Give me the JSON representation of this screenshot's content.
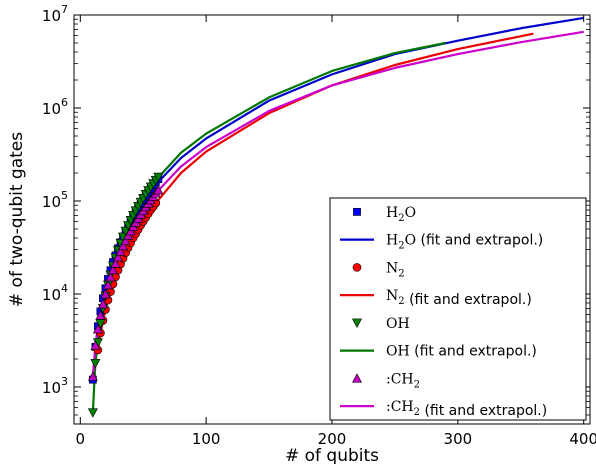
{
  "chart_data": {
    "type": "line",
    "xlabel": "# of qubits",
    "ylabel": "# of two-qubit gates",
    "xlim": [
      -5,
      405
    ],
    "ylim": [
      400,
      10000000
    ],
    "yscale": "log",
    "grid": false,
    "legend_position": "lower-right",
    "x_ticks": [
      0,
      100,
      200,
      300,
      400
    ],
    "y_ticks": [
      {
        "value": 1000,
        "base": "10",
        "exp": "3"
      },
      {
        "value": 10000,
        "base": "10",
        "exp": "4"
      },
      {
        "value": 100000,
        "base": "10",
        "exp": "5"
      },
      {
        "value": 1000000,
        "base": "10",
        "exp": "6"
      },
      {
        "value": 10000000,
        "base": "10",
        "exp": "7"
      }
    ],
    "series": [
      {
        "name": "H2O",
        "name_display": {
          "pre": "H",
          "sub": "2",
          "post": "O",
          "suffix": ""
        },
        "kind": "markers",
        "marker": "square",
        "color": "#0000ff",
        "x": [
          10,
          12,
          14,
          16,
          18,
          20,
          22,
          24,
          26,
          28,
          30,
          32,
          34,
          36,
          38,
          40,
          42,
          44,
          46,
          48,
          50,
          52,
          54,
          56,
          58,
          60,
          62
        ],
        "y": [
          1200,
          2700,
          4500,
          6500,
          9000,
          11500,
          14500,
          18000,
          22000,
          26000,
          31000,
          36000,
          41500,
          47500,
          54000,
          61000,
          68500,
          76500,
          85000,
          94000,
          103500,
          113500,
          124000,
          135000,
          147000,
          159000,
          172000
        ]
      },
      {
        "name": "H2O (fit and extrapol.)",
        "name_display": {
          "pre": "H",
          "sub": "2",
          "post": "O",
          "suffix": " (fit and extrapol.)"
        },
        "kind": "line",
        "color": "#0000cc",
        "x": [
          10,
          12,
          14,
          16,
          20,
          25,
          30,
          40,
          50,
          60,
          80,
          100,
          150,
          200,
          250,
          300,
          350,
          400
        ],
        "y": [
          1200,
          2700,
          4500,
          6500,
          11500,
          20000,
          31000,
          61000,
          100000,
          150000,
          290000,
          470000,
          1200000,
          2300000,
          3800000,
          5300000,
          7200000,
          9300000
        ]
      },
      {
        "name": "N2",
        "name_display": {
          "pre": "N",
          "sub": "2",
          "post": "",
          "suffix": ""
        },
        "kind": "markers",
        "marker": "circle",
        "color": "#ff0000",
        "x": [
          14,
          16,
          18,
          20,
          22,
          24,
          26,
          28,
          30,
          32,
          34,
          36,
          38,
          40,
          42,
          44,
          46,
          48,
          50,
          52,
          54,
          56,
          58,
          60
        ],
        "y": [
          2500,
          3800,
          5200,
          6800,
          8600,
          10600,
          12800,
          15300,
          18000,
          21000,
          24200,
          27700,
          31500,
          35500,
          40000,
          44500,
          49500,
          55000,
          60500,
          66500,
          73000,
          80000,
          87000,
          95000
        ]
      },
      {
        "name": "N2 (fit and extrapol.)",
        "name_display": {
          "pre": "N",
          "sub": "2",
          "post": "",
          "suffix": " (fit and extrapol.)"
        },
        "kind": "line",
        "color": "#ee0000",
        "x": [
          14,
          16,
          20,
          25,
          30,
          40,
          50,
          60,
          80,
          100,
          150,
          200,
          250,
          300,
          360
        ],
        "y": [
          2500,
          3800,
          6800,
          11800,
          18000,
          35500,
          60500,
          95000,
          200000,
          340000,
          880000,
          1750000,
          2900000,
          4300000,
          6300000
        ]
      },
      {
        "name": "OH",
        "name_display": {
          "pre": "OH",
          "sub": "",
          "post": "",
          "suffix": ""
        },
        "kind": "markers",
        "marker": "triangle-down",
        "color": "#008000",
        "x": [
          10,
          12,
          14,
          16,
          18,
          20,
          22,
          24,
          26,
          28,
          30,
          32,
          34,
          36,
          38,
          40,
          42,
          44,
          46,
          48,
          50,
          52,
          54,
          56,
          58,
          60,
          62
        ],
        "y": [
          530,
          1800,
          3000,
          4800,
          7000,
          9500,
          12500,
          16000,
          20000,
          24500,
          29500,
          35000,
          41000,
          47500,
          54500,
          62000,
          70000,
          78500,
          87500,
          97000,
          107000,
          118000,
          129500,
          141500,
          154000,
          167000,
          181000
        ]
      },
      {
        "name": "OH (fit and extrapol.)",
        "name_display": {
          "pre": "OH",
          "sub": "",
          "post": "",
          "suffix": " (fit and extrapol.)"
        },
        "kind": "line",
        "color": "#007700",
        "x": [
          10,
          11,
          12,
          14,
          16,
          20,
          25,
          30,
          40,
          50,
          60,
          80,
          100,
          150,
          200,
          250,
          290
        ],
        "y": [
          530,
          1000,
          1800,
          3000,
          4800,
          9500,
          17500,
          29500,
          62000,
          107000,
          167000,
          330000,
          530000,
          1300000,
          2500000,
          3900000,
          5000000
        ]
      },
      {
        "name": ":CH2",
        "name_display": {
          "pre": ":CH",
          "sub": "2",
          "post": "",
          "suffix": ""
        },
        "kind": "markers",
        "marker": "triangle-up",
        "color": "#bf00bf",
        "x": [
          10,
          12,
          14,
          16,
          18,
          20,
          22,
          24,
          26,
          28,
          30,
          32,
          34,
          36,
          38,
          40,
          42,
          44,
          46,
          48,
          50,
          52,
          54,
          56,
          58,
          60,
          62
        ],
        "y": [
          1300,
          2800,
          4200,
          5900,
          7800,
          10000,
          12500,
          15200,
          18200,
          21400,
          25000,
          28800,
          33000,
          37500,
          42500,
          47500,
          53000,
          59000,
          65000,
          72000,
          79000,
          86500,
          94500,
          103000,
          112000,
          121500,
          131000
        ]
      },
      {
        "name": ":CH2 (fit and extrapol.)",
        "name_display": {
          "pre": ":CH",
          "sub": "2",
          "post": "",
          "suffix": " (fit and extrapol.)"
        },
        "kind": "line",
        "color": "#cc00cc",
        "x": [
          10,
          12,
          14,
          16,
          20,
          25,
          30,
          40,
          50,
          60,
          80,
          100,
          150,
          200,
          250,
          300,
          350,
          400
        ],
        "y": [
          1300,
          2800,
          4200,
          5900,
          10000,
          16600,
          25000,
          47500,
          79000,
          121500,
          235000,
          380000,
          930000,
          1750000,
          2700000,
          3800000,
          5100000,
          6600000
        ]
      }
    ]
  }
}
